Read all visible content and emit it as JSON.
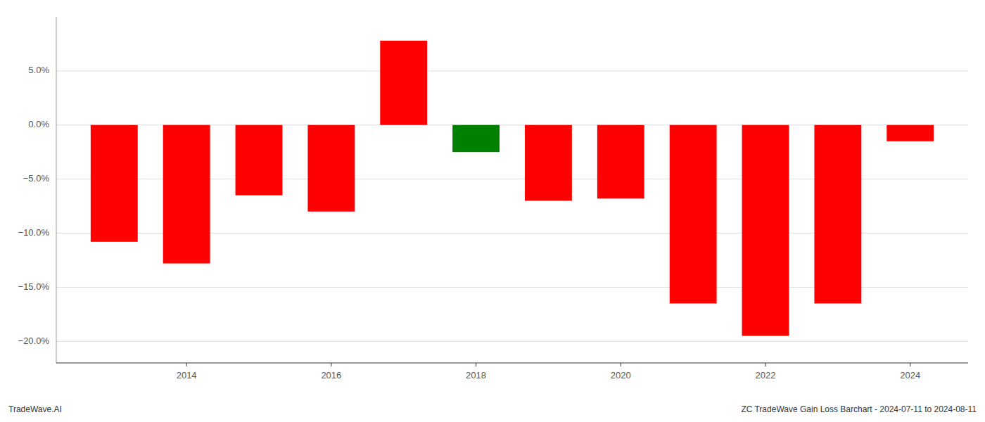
{
  "chart_data": {
    "type": "bar",
    "x": [
      2013,
      2014,
      2015,
      2016,
      2017,
      2018,
      2019,
      2020,
      2021,
      2022,
      2023,
      2024
    ],
    "values": [
      -10.8,
      -12.8,
      -6.5,
      -8.0,
      7.8,
      -2.5,
      -7.0,
      -6.8,
      -16.5,
      -19.5,
      -16.5,
      -1.5
    ],
    "colors": [
      "#ff0000",
      "#ff0000",
      "#ff0000",
      "#ff0000",
      "#ff0000",
      "#008000",
      "#ff0000",
      "#ff0000",
      "#ff0000",
      "#ff0000",
      "#ff0000",
      "#ff0000"
    ],
    "xlim": [
      2012.2,
      2024.8
    ],
    "xticks": [
      2014,
      2016,
      2018,
      2020,
      2022,
      2024
    ],
    "ylim": [
      -22,
      10
    ],
    "yticks": [
      {
        "value": -20.0,
        "label": "−20.0%"
      },
      {
        "value": -15.0,
        "label": "−15.0%"
      },
      {
        "value": -10.0,
        "label": "−10.0%"
      },
      {
        "value": -5.0,
        "label": "−5.0%"
      },
      {
        "value": 0.0,
        "label": "0.0%"
      },
      {
        "value": 5.0,
        "label": "5.0%"
      }
    ],
    "grid": true,
    "annotations": [
      "TradeWave.AI",
      "ZC TradeWave Gain Loss Barchart - 2024-07-11 to 2024-08-11"
    ]
  }
}
